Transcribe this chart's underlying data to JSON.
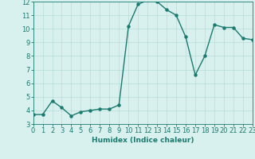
{
  "x": [
    0,
    1,
    2,
    3,
    4,
    5,
    6,
    7,
    8,
    9,
    10,
    11,
    12,
    13,
    14,
    15,
    16,
    17,
    18,
    19,
    20,
    21,
    22,
    23
  ],
  "y": [
    3.7,
    3.7,
    4.7,
    4.2,
    3.6,
    3.9,
    4.0,
    4.1,
    4.1,
    4.4,
    10.2,
    11.8,
    12.1,
    12.0,
    11.4,
    11.0,
    9.4,
    6.6,
    8.0,
    10.3,
    10.1,
    10.1,
    9.3,
    9.2
  ],
  "line_color": "#1a7a6e",
  "bg_color": "#d8f0ee",
  "grid_color": "#b8dcd8",
  "xlabel": "Humidex (Indice chaleur)",
  "ylim": [
    3,
    12
  ],
  "xlim": [
    0,
    23
  ],
  "yticks": [
    3,
    4,
    5,
    6,
    7,
    8,
    9,
    10,
    11,
    12
  ],
  "xticks": [
    0,
    1,
    2,
    3,
    4,
    5,
    6,
    7,
    8,
    9,
    10,
    11,
    12,
    13,
    14,
    15,
    16,
    17,
    18,
    19,
    20,
    21,
    22,
    23
  ],
  "xlabel_fontsize": 6.5,
  "tick_fontsize": 6.0,
  "marker_size": 2.2,
  "line_width": 1.0
}
